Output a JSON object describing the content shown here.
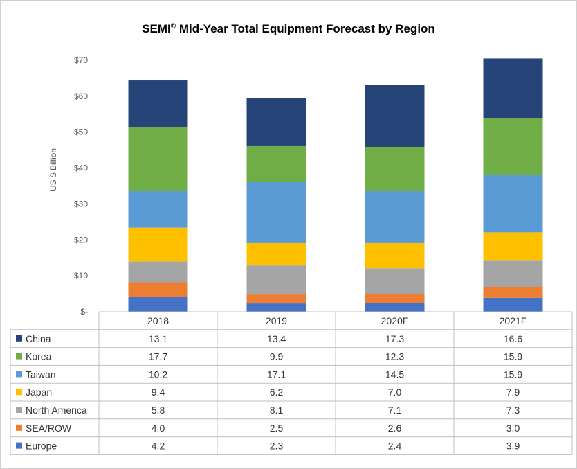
{
  "chart_data": {
    "type": "bar",
    "stacked": true,
    "title": "SEMI® Mid-Year Total Equipment Forecast by Region",
    "title_main": "SEMI",
    "title_mark": "®",
    "title_rest": " Mid-Year Total Equipment Forecast by Region",
    "ylabel": "US $ Billion",
    "ylim": [
      0,
      70
    ],
    "yticks": [
      "$-",
      "$10",
      "$20",
      "$30",
      "$40",
      "$50",
      "$60",
      "$70"
    ],
    "categories": [
      "2018",
      "2019",
      "2020F",
      "2021F"
    ],
    "grid": false,
    "legend": "data-table",
    "series": [
      {
        "name": "Europe",
        "color": "#4472C4",
        "values": [
          4.2,
          2.3,
          2.4,
          3.9
        ]
      },
      {
        "name": "SEA/ROW",
        "color": "#ED7D31",
        "values": [
          4.0,
          2.5,
          2.6,
          3.0
        ]
      },
      {
        "name": "North America",
        "color": "#A5A5A5",
        "values": [
          5.8,
          8.1,
          7.1,
          7.3
        ]
      },
      {
        "name": "Japan",
        "color": "#FFC000",
        "values": [
          9.4,
          6.2,
          7.0,
          7.9
        ]
      },
      {
        "name": "Taiwan",
        "color": "#5B9BD5",
        "values": [
          10.2,
          17.1,
          14.5,
          15.9
        ]
      },
      {
        "name": "Korea",
        "color": "#70AD47",
        "values": [
          17.7,
          9.9,
          12.3,
          15.9
        ]
      },
      {
        "name": "China",
        "color": "#264478",
        "values": [
          13.1,
          13.4,
          17.3,
          16.6
        ]
      }
    ],
    "table_row_order": [
      "China",
      "Korea",
      "Taiwan",
      "Japan",
      "North America",
      "SEA/ROW",
      "Europe"
    ]
  }
}
